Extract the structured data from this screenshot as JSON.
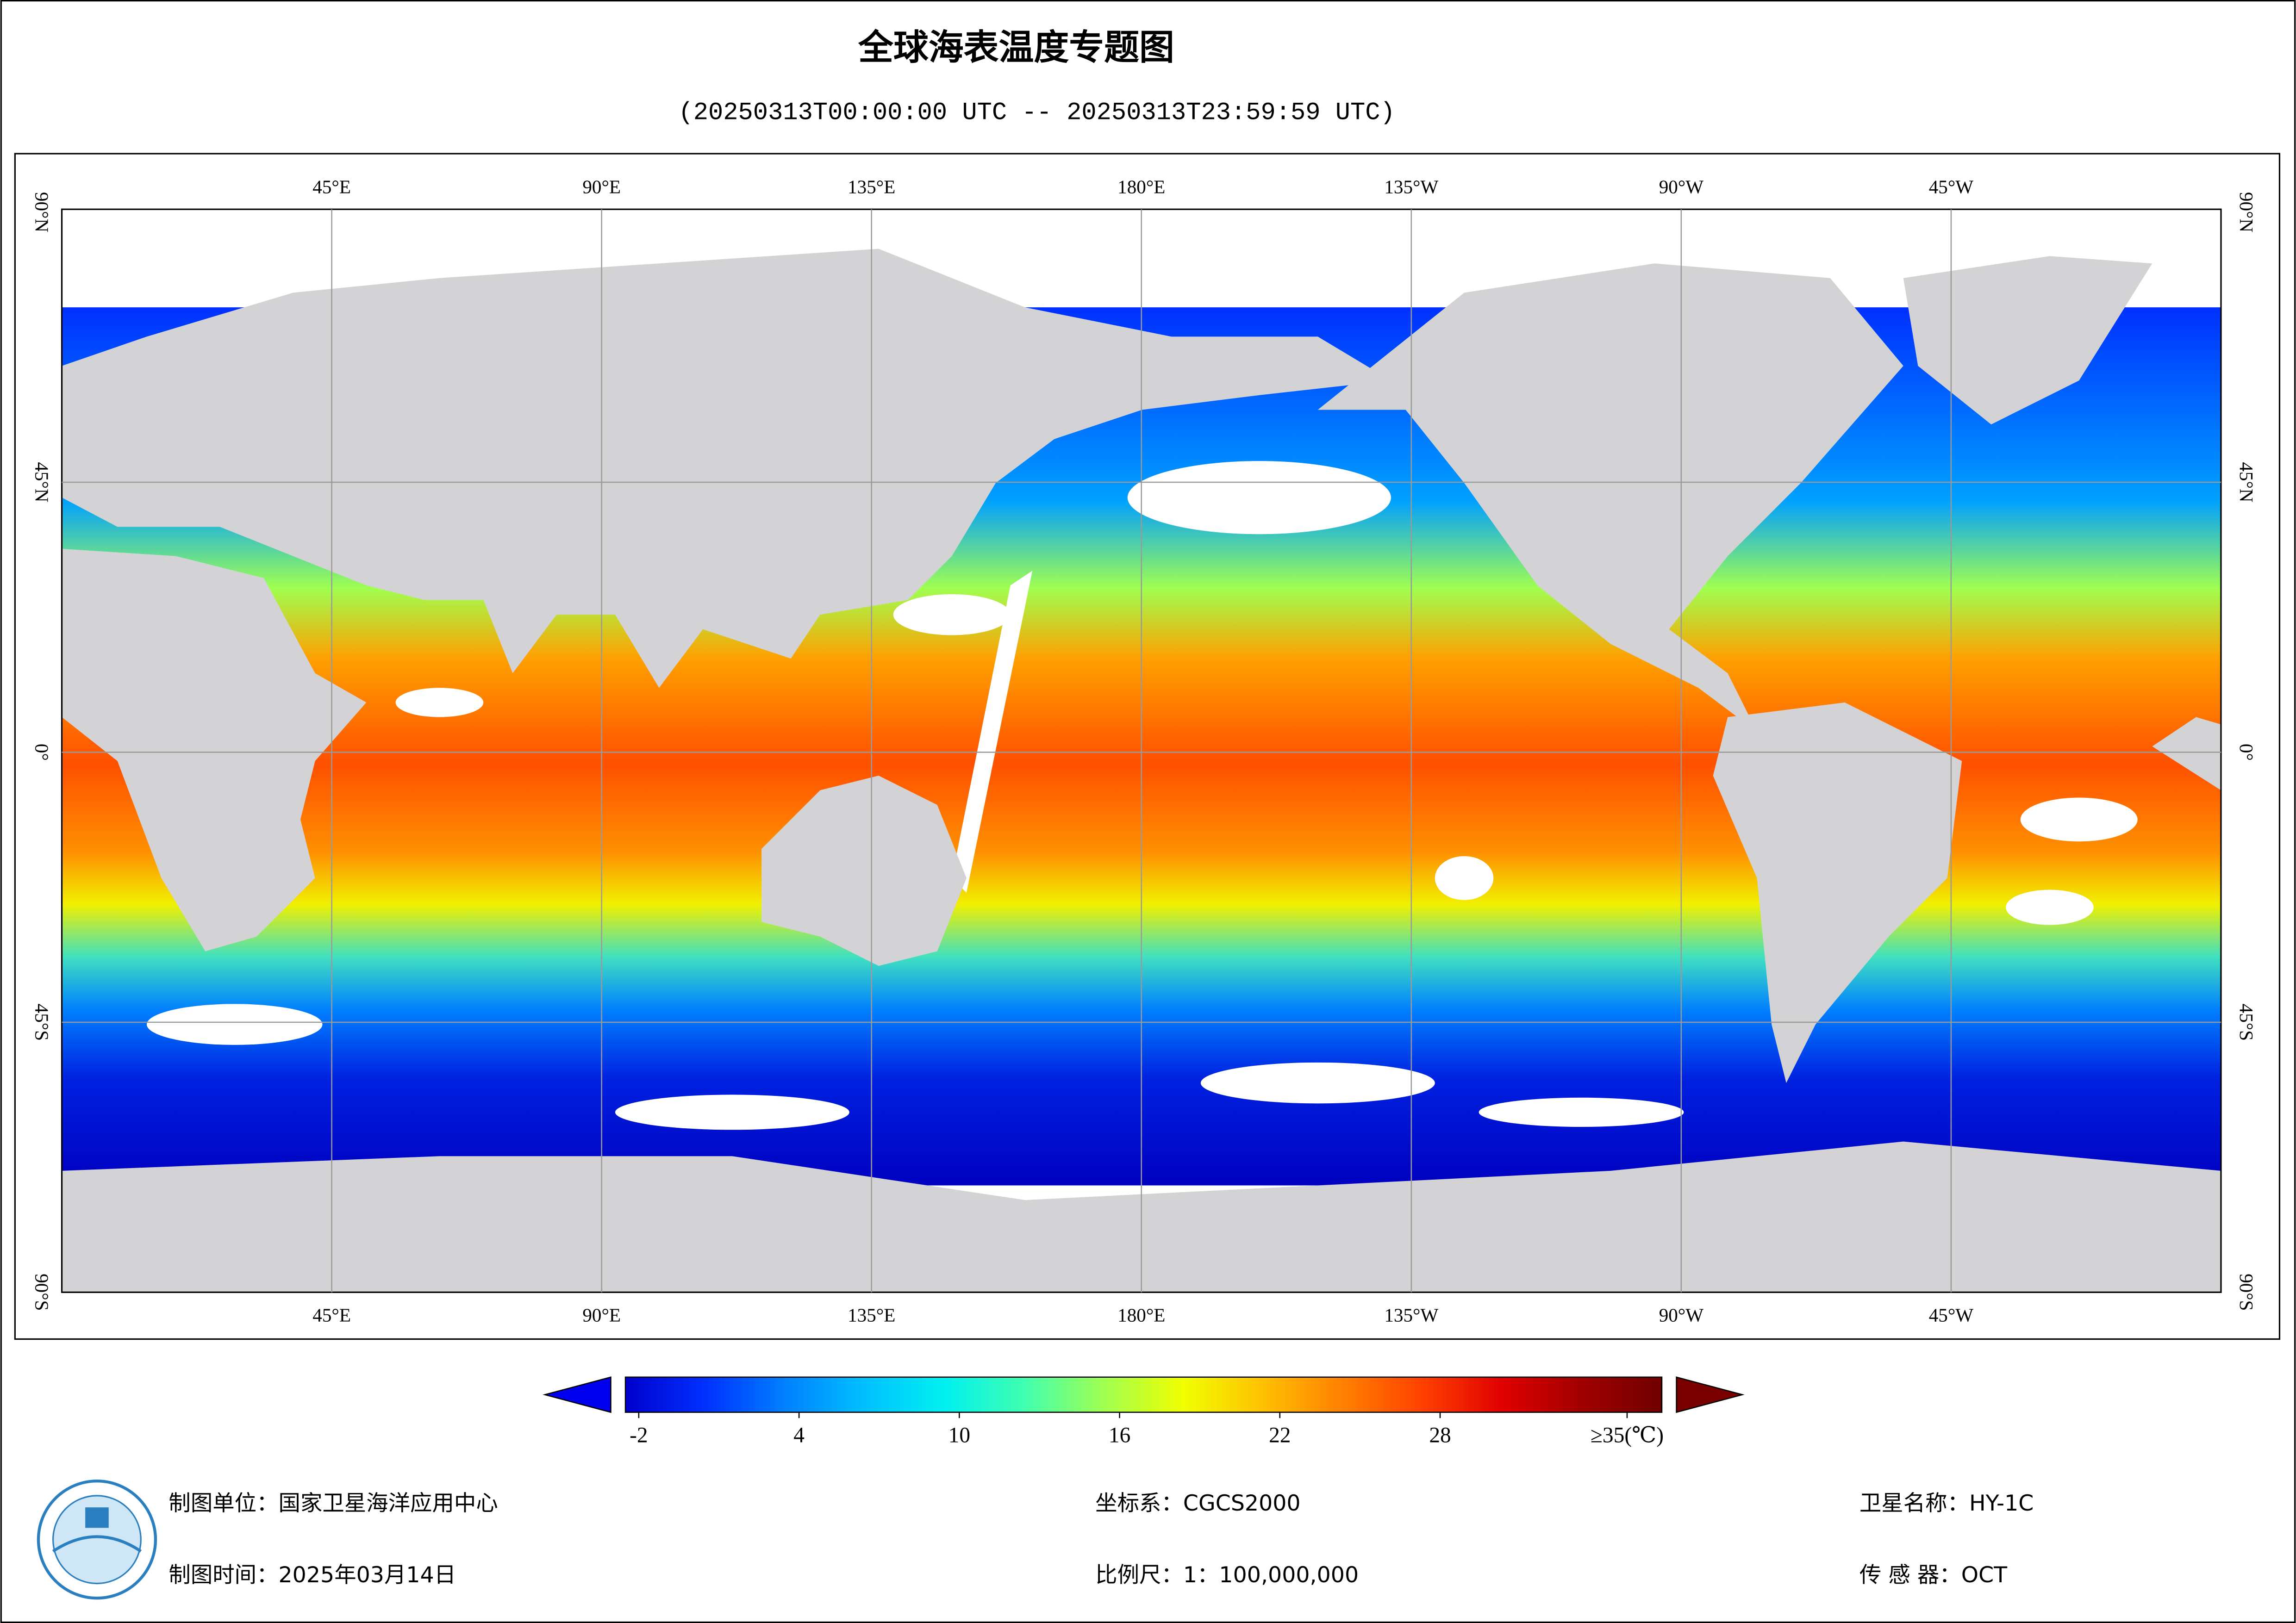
{
  "title": "全球海表温度专题图",
  "subtitle": "(20250313T00:00:00 UTC -- 20250313T23:59:59 UTC)",
  "map": {
    "lon_labels": [
      "45°E",
      "90°E",
      "135°E",
      "180°E",
      "135°W",
      "90°W",
      "45°W"
    ],
    "lat_labels": [
      "90°N",
      "45°N",
      "0°",
      "45°S",
      "90°S"
    ]
  },
  "colorbar": {
    "range": [
      -2.5,
      36.3
    ],
    "ticks": [
      -2,
      4,
      10,
      16,
      22,
      28,
      {
        "value": 35,
        "label": "≥35(℃)"
      }
    ],
    "colors": [
      "#0000cd",
      "#0030ff",
      "#0080ff",
      "#00c0ff",
      "#00f0f0",
      "#40ffb0",
      "#a0ff50",
      "#f0ff00",
      "#ffc000",
      "#ff8000",
      "#ff4000",
      "#e00000",
      "#a00000",
      "#700000"
    ],
    "under_color": "#0000ee",
    "over_color": "#7a0000"
  },
  "footer": {
    "unit": "制图单位：国家卫星海洋应用中心",
    "date": "制图时间：2025年03月14日",
    "crs": "坐标系：CGCS2000",
    "scale": "比例尺：1：100,000,000",
    "satellite": "卫星名称：HY-1C",
    "sensor": "传 感 器：OCT"
  }
}
